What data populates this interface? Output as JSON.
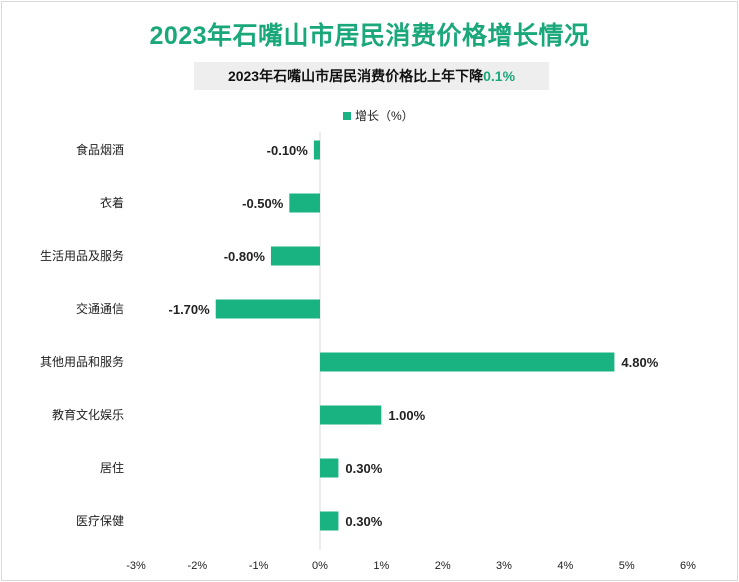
{
  "title": "2023年石嘴山市居民消费价格增长情况",
  "subtitle": {
    "prefix": "2023年石嘴山市居民消费价格比上年下降",
    "highlight": "0.1%"
  },
  "colors": {
    "accent": "#1aa87a",
    "bar": "#19b382"
  },
  "chart_data": {
    "type": "bar",
    "orientation": "horizontal",
    "categories": [
      "食品烟酒",
      "衣着",
      "生活用品及服务",
      "交通通信",
      "其他用品和服务",
      "教育文化娱乐",
      "居住",
      "医疗保健"
    ],
    "series": [
      {
        "name": "增长（%）",
        "values": [
          -0.1,
          -0.5,
          -0.8,
          -1.7,
          4.8,
          1.0,
          0.3,
          0.3
        ]
      }
    ],
    "value_labels": [
      "-0.10%",
      "-0.50%",
      "-0.80%",
      "-1.70%",
      "4.80%",
      "1.00%",
      "0.30%",
      "0.30%"
    ],
    "xlim": [
      -3,
      6
    ],
    "x_ticks": [
      "-3%",
      "-2%",
      "-1%",
      "0%",
      "1%",
      "2%",
      "3%",
      "4%",
      "5%",
      "6%"
    ],
    "legend_position": "top",
    "grid": false
  }
}
